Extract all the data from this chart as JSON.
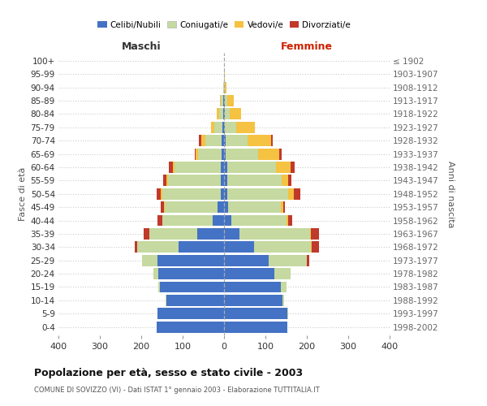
{
  "age_groups": [
    "0-4",
    "5-9",
    "10-14",
    "15-19",
    "20-24",
    "25-29",
    "30-34",
    "35-39",
    "40-44",
    "45-49",
    "50-54",
    "55-59",
    "60-64",
    "65-69",
    "70-74",
    "75-79",
    "80-84",
    "85-89",
    "90-94",
    "95-99",
    "100+"
  ],
  "birth_years": [
    "1998-2002",
    "1993-1997",
    "1988-1992",
    "1983-1987",
    "1978-1982",
    "1973-1977",
    "1968-1972",
    "1963-1967",
    "1958-1962",
    "1953-1957",
    "1948-1952",
    "1943-1947",
    "1938-1942",
    "1933-1937",
    "1928-1932",
    "1923-1927",
    "1918-1922",
    "1913-1917",
    "1908-1912",
    "1903-1907",
    "≤ 1902"
  ],
  "maschi": {
    "celibi": [
      162,
      160,
      140,
      155,
      158,
      160,
      110,
      65,
      28,
      15,
      8,
      8,
      8,
      5,
      5,
      3,
      2,
      2,
      0,
      0,
      0
    ],
    "coniugati": [
      0,
      0,
      2,
      4,
      12,
      38,
      100,
      115,
      122,
      128,
      142,
      128,
      112,
      58,
      40,
      20,
      10,
      5,
      2,
      0,
      0
    ],
    "vedovi": [
      0,
      0,
      0,
      0,
      0,
      0,
      0,
      0,
      0,
      2,
      2,
      3,
      4,
      5,
      10,
      8,
      5,
      2,
      0,
      0,
      0
    ],
    "divorziati": [
      0,
      0,
      0,
      0,
      0,
      0,
      5,
      15,
      10,
      8,
      10,
      8,
      10,
      3,
      5,
      0,
      0,
      0,
      0,
      0,
      0
    ]
  },
  "femmine": {
    "nubili": [
      152,
      152,
      142,
      138,
      122,
      108,
      72,
      38,
      18,
      10,
      7,
      7,
      7,
      4,
      4,
      2,
      2,
      2,
      0,
      0,
      0
    ],
    "coniugate": [
      0,
      2,
      4,
      13,
      38,
      92,
      138,
      170,
      132,
      128,
      148,
      132,
      118,
      78,
      52,
      28,
      12,
      6,
      2,
      0,
      0
    ],
    "vedove": [
      0,
      0,
      0,
      0,
      0,
      0,
      2,
      2,
      5,
      5,
      14,
      15,
      36,
      52,
      58,
      45,
      28,
      16,
      4,
      2,
      0
    ],
    "divorziate": [
      0,
      0,
      0,
      0,
      0,
      5,
      18,
      20,
      10,
      5,
      15,
      8,
      10,
      5,
      3,
      0,
      0,
      0,
      0,
      0,
      0
    ]
  },
  "colors": {
    "celibi_nubili": "#4472c4",
    "coniugati": "#c5d9a0",
    "vedovi": "#f5c242",
    "divorziati": "#c0392b"
  },
  "title": "Popolazione per età, sesso e stato civile - 2003",
  "subtitle": "COMUNE DI SOVIZZO (VI) - Dati ISTAT 1° gennaio 2003 - Elaborazione TUTTITALIA.IT",
  "label_maschi": "Maschi",
  "label_femmine": "Femmine",
  "ylabel_left": "Fasce di età",
  "ylabel_right": "Anni di nascita",
  "xlim": 400,
  "bg_color": "#ffffff",
  "grid_color": "#cccccc"
}
